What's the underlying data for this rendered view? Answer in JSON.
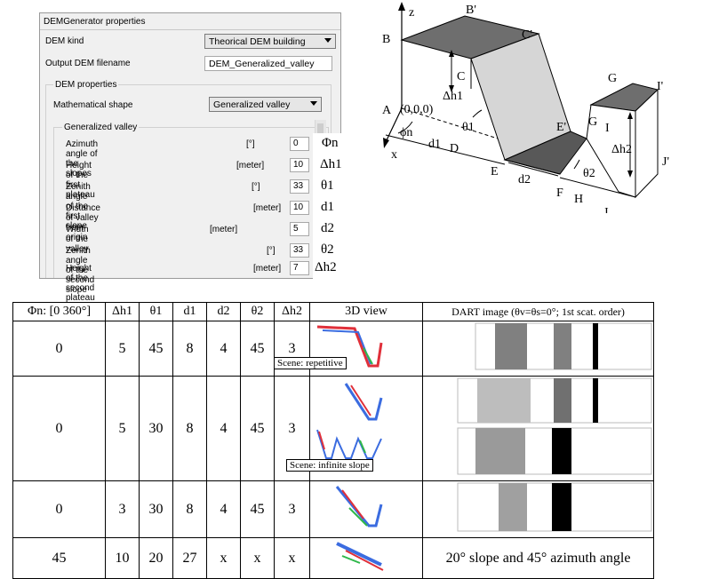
{
  "panel": {
    "title": "DEMGenerator properties",
    "dem_kind_label": "DEM kind",
    "dem_kind_value": "Theorical DEM building",
    "output_label": "Output DEM filename",
    "output_value": "DEM_Generalized_valley",
    "dem_properties_label": "DEM properties",
    "shape_label": "Mathematical shape",
    "shape_value": "Generalized valley",
    "group_label": "Generalized valley",
    "rows": [
      {
        "label": "Azimuth angle of the slopes",
        "unit": "[°]",
        "value": "0",
        "symbol": "Φn"
      },
      {
        "label": "Height of the first plateau",
        "unit": "[meter]",
        "value": "10",
        "symbol": "Δh1"
      },
      {
        "label": "Zenith angle of the first slope",
        "unit": "[°]",
        "value": "33",
        "symbol": "θ1"
      },
      {
        "label": "Distance of valley from origin",
        "unit": "[meter]",
        "value": "10",
        "symbol": "d1"
      },
      {
        "label": "Width of the valley",
        "unit": "[meter]",
        "value": "5",
        "symbol": "d2"
      },
      {
        "label": "Zenith angle of the second slope",
        "unit": "[°]",
        "value": "33",
        "symbol": "θ2"
      },
      {
        "label": "Height of the second plateau",
        "unit": "[meter]",
        "value": "7",
        "symbol": "Δh2"
      }
    ]
  },
  "diagram": {
    "labels": {
      "z": "z",
      "B": "B",
      "Bp": "B'",
      "Cp": "C'",
      "C": "C",
      "dh1": "Δh1",
      "A": "A",
      "origin": "(0,0,0)",
      "phin": "ϕn",
      "x": "x",
      "d1": "d1",
      "D": "D",
      "theta1": "θ1",
      "E": "E",
      "Ep": "E'",
      "d2": "d2",
      "F": "F",
      "H": "H",
      "theta2": "θ2",
      "G": "G",
      "Gp": "G",
      "Ip": "I'",
      "I": "I",
      "dh2": "Δh2",
      "Jp": "J'",
      "J": "J"
    }
  },
  "table": {
    "headers": {
      "phin": "Φn: [0 360°]",
      "dh1": "Δh1",
      "t1": "θ1",
      "d1": "d1",
      "d2": "d2",
      "t2": "θ2",
      "dh2": "Δh2",
      "view": "3D view",
      "dart": "DART image (θv=θs=0°; 1st scat. order)"
    },
    "rows": [
      {
        "phin": "0",
        "dh1": "5",
        "t1": "45",
        "d1": "8",
        "d2": "4",
        "t2": "45",
        "dh2": "3"
      },
      {
        "phin": "0",
        "dh1": "5",
        "t1": "30",
        "d1": "8",
        "d2": "4",
        "t2": "45",
        "dh2": "3"
      },
      {
        "phin": "0",
        "dh1": "3",
        "t1": "30",
        "d1": "8",
        "d2": "4",
        "t2": "45",
        "dh2": "3"
      },
      {
        "phin": "45",
        "dh1": "10",
        "t1": "20",
        "d1": "27",
        "d2": "x",
        "t2": "x",
        "dh2": "x"
      }
    ],
    "scene_repetitive": "Scene: repetitive",
    "scene_infinite": "Scene: infinite slope",
    "last_dart_text": "20° slope and 45° azimuth angle"
  }
}
